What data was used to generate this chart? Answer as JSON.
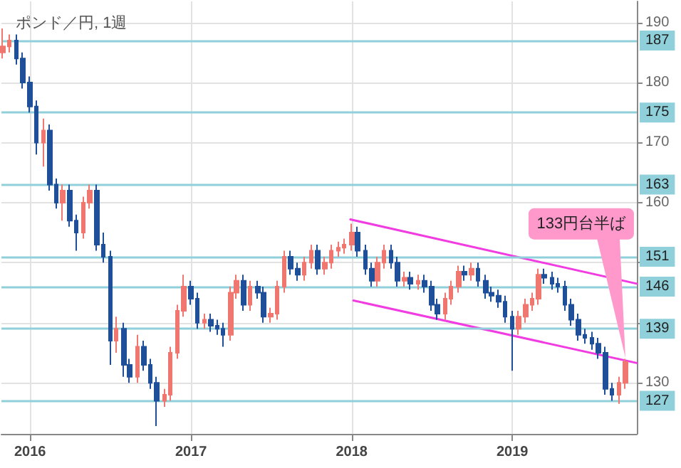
{
  "chart_data": {
    "type": "candlestick",
    "title": "ポンド／円, 1週",
    "x": [
      "2015-11-01",
      "2015-11-15",
      "2015-12-01",
      "2015-12-15",
      "2016-01-01",
      "2016-01-15",
      "2016-02-01",
      "2016-02-15",
      "2016-03-01",
      "2016-03-15",
      "2016-04-01",
      "2016-04-15",
      "2016-05-01",
      "2016-05-15",
      "2016-06-01",
      "2016-06-15",
      "2016-07-01",
      "2016-07-15",
      "2016-08-01",
      "2016-08-15",
      "2016-09-01",
      "2016-09-15",
      "2016-10-01",
      "2016-10-15",
      "2016-11-01",
      "2016-11-15",
      "2016-12-01",
      "2016-12-15",
      "2017-01-01",
      "2017-01-15",
      "2017-02-01",
      "2017-02-15",
      "2017-03-01",
      "2017-03-15",
      "2017-04-01",
      "2017-04-15",
      "2017-05-01",
      "2017-05-15",
      "2017-06-01",
      "2017-06-15",
      "2017-07-01",
      "2017-07-15",
      "2017-08-01",
      "2017-08-15",
      "2017-09-01",
      "2017-09-15",
      "2017-10-01",
      "2017-10-15",
      "2017-11-01",
      "2017-11-15",
      "2017-12-01",
      "2017-12-15",
      "2018-01-01",
      "2018-01-15",
      "2018-02-01",
      "2018-02-15",
      "2018-03-01",
      "2018-03-15",
      "2018-04-01",
      "2018-04-15",
      "2018-05-01",
      "2018-05-15",
      "2018-06-01",
      "2018-06-15",
      "2018-07-01",
      "2018-07-15",
      "2018-08-01",
      "2018-08-15",
      "2018-09-01",
      "2018-09-15",
      "2018-10-01",
      "2018-10-15",
      "2018-11-01",
      "2018-11-15",
      "2018-12-01",
      "2018-12-15",
      "2019-01-01",
      "2019-01-15",
      "2019-02-01",
      "2019-02-15",
      "2019-03-01",
      "2019-03-15",
      "2019-04-01",
      "2019-04-15",
      "2019-05-01",
      "2019-05-15",
      "2019-06-01",
      "2019-06-15",
      "2019-07-01",
      "2019-07-15",
      "2019-08-01",
      "2019-08-15",
      "2019-09-01",
      "2019-09-15"
    ],
    "ohlc": [
      [
        185,
        189,
        184,
        186
      ],
      [
        186,
        188,
        185,
        187
      ],
      [
        187,
        188,
        183,
        184
      ],
      [
        184,
        185,
        179,
        180
      ],
      [
        180,
        181,
        175,
        176
      ],
      [
        176,
        177,
        168,
        170
      ],
      [
        170,
        174,
        166,
        172
      ],
      [
        172,
        173,
        162,
        163
      ],
      [
        163,
        164,
        159,
        160
      ],
      [
        160,
        163,
        157,
        162
      ],
      [
        162,
        163,
        156,
        157
      ],
      [
        157,
        158,
        152,
        155
      ],
      [
        155,
        161,
        154,
        160
      ],
      [
        160,
        163,
        159,
        162
      ],
      [
        162,
        163,
        152,
        153
      ],
      [
        153,
        155,
        150,
        151
      ],
      [
        151,
        152,
        133,
        137
      ],
      [
        137,
        141,
        135,
        139
      ],
      [
        139,
        140,
        131,
        133
      ],
      [
        133,
        134,
        130,
        131
      ],
      [
        131,
        138,
        130,
        136
      ],
      [
        136,
        137,
        132,
        133
      ],
      [
        133,
        134,
        129,
        130
      ],
      [
        130,
        131,
        122.8,
        127
      ],
      [
        127,
        129,
        126,
        128
      ],
      [
        128,
        136,
        127,
        135
      ],
      [
        135,
        143,
        134,
        142
      ],
      [
        142,
        148,
        141,
        146
      ],
      [
        146,
        147,
        143,
        144
      ],
      [
        144,
        145,
        139,
        140
      ],
      [
        140,
        141.5,
        139,
        140.5
      ],
      [
        140.5,
        141.5,
        138.5,
        139.5
      ],
      [
        139.5,
        140.5,
        138,
        139
      ],
      [
        139,
        140,
        136,
        138
      ],
      [
        138,
        146,
        137,
        145
      ],
      [
        145,
        148,
        144,
        147
      ],
      [
        147,
        148,
        142,
        143
      ],
      [
        143,
        147,
        142,
        146
      ],
      [
        146,
        147,
        144,
        145
      ],
      [
        145,
        146,
        140,
        141
      ],
      [
        141,
        142.5,
        140,
        141.5
      ],
      [
        141.5,
        147,
        140.5,
        146
      ],
      [
        146,
        152,
        145,
        151
      ],
      [
        151,
        152,
        148,
        149
      ],
      [
        149,
        150,
        147,
        148
      ],
      [
        148,
        151,
        147,
        150
      ],
      [
        150,
        153,
        149,
        152
      ],
      [
        152,
        153,
        148,
        149
      ],
      [
        149,
        151,
        148,
        150
      ],
      [
        150,
        153,
        149,
        152
      ],
      [
        152,
        153.5,
        151,
        152.5
      ],
      [
        152.5,
        154,
        151.5,
        153
      ],
      [
        153,
        156.5,
        152,
        155
      ],
      [
        155,
        156,
        151,
        152
      ],
      [
        152,
        153,
        148,
        149
      ],
      [
        149,
        150,
        146,
        147
      ],
      [
        147,
        151,
        146,
        150
      ],
      [
        150,
        153,
        149,
        152
      ],
      [
        152,
        153,
        149,
        150
      ],
      [
        150,
        151,
        146,
        147
      ],
      [
        147,
        148.5,
        146,
        147.5
      ],
      [
        147.5,
        148.5,
        145.5,
        146.5
      ],
      [
        146.5,
        148,
        145.5,
        147
      ],
      [
        147,
        148,
        145,
        146
      ],
      [
        146,
        147,
        142,
        143
      ],
      [
        143,
        144,
        140.5,
        141.5
      ],
      [
        141.5,
        145,
        140.5,
        144
      ],
      [
        144,
        147,
        143,
        146
      ],
      [
        146,
        149.5,
        145,
        148.5
      ],
      [
        148.5,
        149.5,
        147,
        148
      ],
      [
        148,
        150,
        147,
        149
      ],
      [
        149,
        150,
        146,
        147
      ],
      [
        147,
        148,
        144,
        145
      ],
      [
        145,
        146,
        143.5,
        144.5
      ],
      [
        144.5,
        145.5,
        142.5,
        143.5
      ],
      [
        143.5,
        144.5,
        140,
        141
      ],
      [
        141,
        142,
        132,
        139
      ],
      [
        139,
        142,
        138,
        141
      ],
      [
        141,
        144,
        140,
        143
      ],
      [
        143,
        145,
        142,
        144
      ],
      [
        144,
        149,
        143,
        148
      ],
      [
        148,
        149,
        146.5,
        147.5
      ],
      [
        147.5,
        148.5,
        145.5,
        146.5
      ],
      [
        146.5,
        147.5,
        145,
        146
      ],
      [
        146,
        147,
        142,
        143
      ],
      [
        143,
        144,
        139.5,
        140.5
      ],
      [
        140.5,
        141.5,
        137,
        138
      ],
      [
        138,
        139,
        136.5,
        137.5
      ],
      [
        137.5,
        138.5,
        135.5,
        136.5
      ],
      [
        136.5,
        137.5,
        134,
        135
      ],
      [
        135,
        136,
        128,
        129
      ],
      [
        129,
        130,
        127,
        128
      ],
      [
        128,
        131,
        126.5,
        130
      ],
      [
        130,
        134,
        129,
        133.5
      ]
    ],
    "colors": [
      "#f0776f",
      "#f0776f",
      "#1f4f99",
      "#1f4f99",
      "#1f4f99",
      "#1f4f99",
      "#f0776f",
      "#1f4f99",
      "#1f4f99",
      "#f0776f",
      "#1f4f99",
      "#1f4f99",
      "#f0776f",
      "#f0776f",
      "#1f4f99",
      "#1f4f99",
      "#1f4f99",
      "#f0776f",
      "#1f4f99",
      "#1f4f99",
      "#f0776f",
      "#1f4f99",
      "#1f4f99",
      "#1f4f99",
      "#f0776f",
      "#f0776f",
      "#f0776f",
      "#f0776f",
      "#1f4f99",
      "#1f4f99",
      "#f0776f",
      "#1f4f99",
      "#1f4f99",
      "#1f4f99",
      "#f0776f",
      "#f0776f",
      "#1f4f99",
      "#f0776f",
      "#1f4f99",
      "#1f4f99",
      "#f0776f",
      "#f0776f",
      "#f0776f",
      "#1f4f99",
      "#1f4f99",
      "#f0776f",
      "#f0776f",
      "#1f4f99",
      "#f0776f",
      "#f0776f",
      "#f0776f",
      "#f0776f",
      "#f0776f",
      "#1f4f99",
      "#1f4f99",
      "#1f4f99",
      "#f0776f",
      "#f0776f",
      "#1f4f99",
      "#1f4f99",
      "#f0776f",
      "#1f4f99",
      "#f0776f",
      "#1f4f99",
      "#1f4f99",
      "#1f4f99",
      "#f0776f",
      "#f0776f",
      "#f0776f",
      "#1f4f99",
      "#f0776f",
      "#1f4f99",
      "#1f4f99",
      "#1f4f99",
      "#1f4f99",
      "#1f4f99",
      "#1f4f99",
      "#f0776f",
      "#f0776f",
      "#f0776f",
      "#f0776f",
      "#1f4f99",
      "#1f4f99",
      "#1f4f99",
      "#1f4f99",
      "#1f4f99",
      "#1f4f99",
      "#1f4f99",
      "#1f4f99",
      "#1f4f99",
      "#1f4f99",
      "#1f4f99",
      "#f0776f",
      "#f0776f"
    ],
    "series": [
      {
        "type": "line",
        "color": "#f03ce0",
        "x": [
          "2017-12-29",
          "2019-10-11"
        ],
        "values": [
          157.2,
          146.5
        ]
      },
      {
        "type": "line",
        "color": "#f03ce0",
        "x": [
          "2018-01-05",
          "2019-10-11"
        ],
        "values": [
          143.7,
          133.3
        ]
      }
    ],
    "marker": "none",
    "line_style": "solid",
    "xlim": [
      "2015-10-28",
      "2019-10-11"
    ],
    "xticks": [
      "2016",
      "2017",
      "2018",
      "2019"
    ],
    "ylim": [
      121.5,
      193.5
    ],
    "yticks": [
      130,
      {
        "value": 140,
        "label": null
      },
      {
        "value": 150,
        "label": null
      },
      160,
      170,
      180,
      190
    ],
    "grid": true,
    "ref_lines": [
      {
        "axis": "y",
        "value": 187,
        "label": "187",
        "color": "#8fd0da"
      },
      {
        "axis": "y",
        "value": 175,
        "label": "175",
        "color": "#8fd0da"
      },
      {
        "axis": "y",
        "value": 163,
        "label": "163",
        "color": "#8fd0da"
      },
      {
        "axis": "y",
        "value": 151,
        "label": "151",
        "color": "#8fd0da"
      },
      {
        "axis": "y",
        "value": 146,
        "label": "146",
        "color": "#8fd0da"
      },
      {
        "axis": "y",
        "value": 139,
        "label": "139",
        "color": "#8fd0da"
      },
      {
        "axis": "y",
        "value": 127,
        "label": "127",
        "color": "#8fd0da"
      }
    ],
    "annotations": [
      {
        "text": "133円台半ば",
        "x": "2019-09-15",
        "y": 133.5
      }
    ]
  }
}
